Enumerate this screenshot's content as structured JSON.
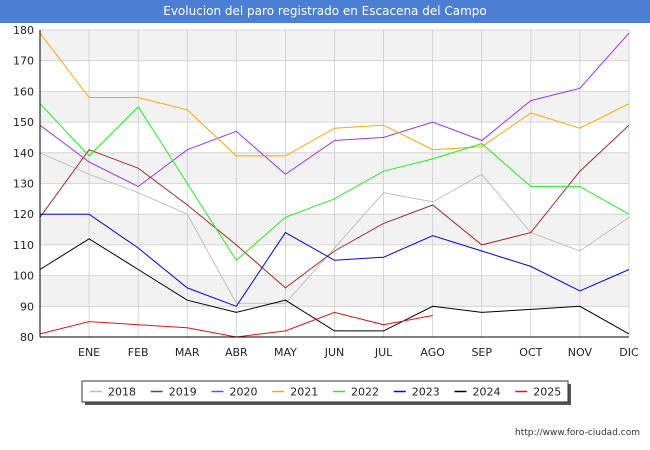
{
  "page": {
    "title": "Evolucion del paro registrado en Escacena del Campo",
    "source": "http://www.foro-ciudad.com"
  },
  "colors": {
    "title_bar": "#4a7fd4",
    "band": "#f2f2f2",
    "grid": "#cccccc",
    "axis": "#000000"
  },
  "chart_data": {
    "type": "line",
    "title": "Evolucion del paro registrado en Escacena del Campo",
    "xlabel": "",
    "ylabel": "",
    "ylim": [
      80,
      180
    ],
    "yticks": [
      80,
      90,
      100,
      110,
      120,
      130,
      140,
      150,
      160,
      170,
      180
    ],
    "categories": [
      "",
      "ENE",
      "FEB",
      "MAR",
      "ABR",
      "MAY",
      "JUN",
      "JUL",
      "AGO",
      "SEP",
      "OCT",
      "NOV",
      "DIC"
    ],
    "legend_position": "bottom-center",
    "grid": true,
    "series": [
      {
        "name": "2018",
        "color": "#c0c0c0",
        "values": [
          140,
          133,
          127,
          120,
          91,
          91,
          109,
          127,
          124,
          133,
          114,
          108,
          119
        ]
      },
      {
        "name": "2019",
        "color": "#a52a2a",
        "values": [
          119,
          141,
          135,
          123,
          110,
          96,
          108,
          117,
          123,
          110,
          114,
          134,
          149
        ]
      },
      {
        "name": "2020",
        "color": "#9a32ee",
        "values": [
          149,
          137,
          129,
          141,
          147,
          133,
          144,
          145,
          150,
          144,
          157,
          161,
          179
        ]
      },
      {
        "name": "2021",
        "color": "#ffa500",
        "values": [
          179,
          158,
          158,
          154,
          139,
          139,
          148,
          149,
          141,
          142,
          153,
          148,
          156
        ]
      },
      {
        "name": "2022",
        "color": "#22ee22",
        "values": [
          156,
          139,
          155,
          130,
          105,
          119,
          125,
          134,
          138,
          143,
          129,
          129,
          120
        ]
      },
      {
        "name": "2023",
        "color": "#0000ee",
        "values": [
          120,
          120,
          109,
          96,
          90,
          114,
          105,
          106,
          113,
          108,
          103,
          95,
          102
        ]
      },
      {
        "name": "2024",
        "color": "#000000",
        "values": [
          102,
          112,
          102,
          92,
          88,
          92,
          82,
          82,
          90,
          88,
          89,
          90,
          81
        ]
      },
      {
        "name": "2025",
        "color": "#ee1111",
        "values": [
          81,
          85,
          84,
          83,
          80,
          82,
          88,
          84,
          87,
          null,
          null,
          null,
          null
        ]
      }
    ]
  }
}
